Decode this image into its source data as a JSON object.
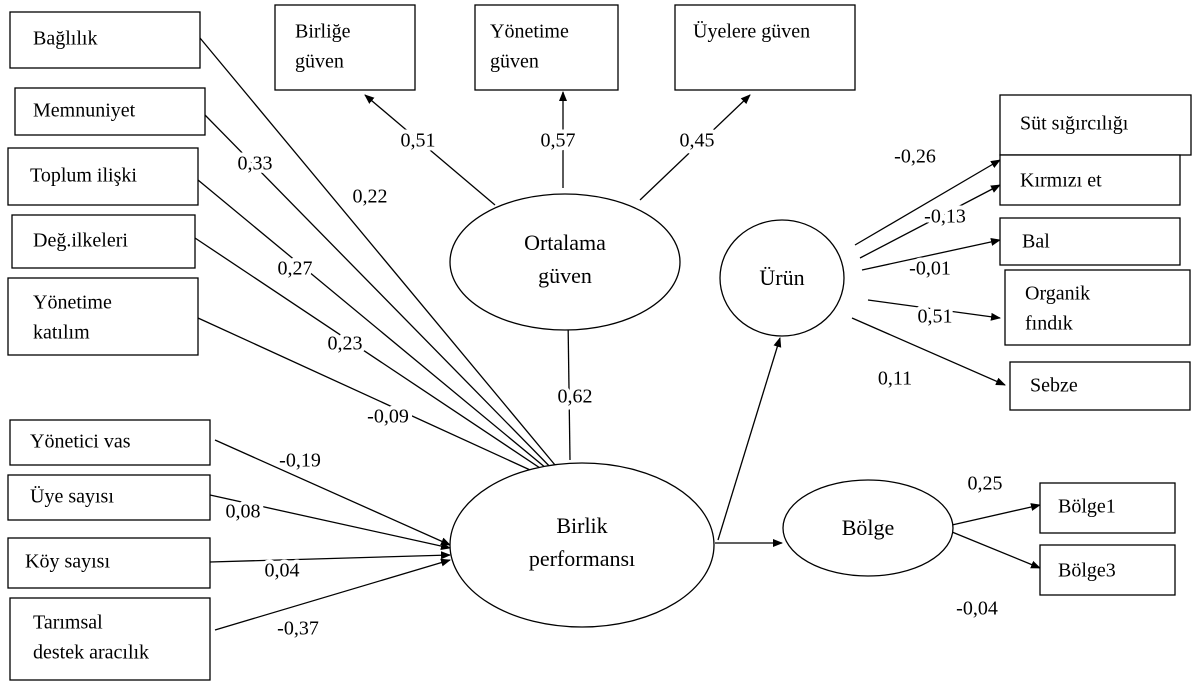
{
  "boxes": [
    {
      "lines": [
        "Bağlılık"
      ]
    },
    {
      "lines": [
        "Memnuniyet"
      ]
    },
    {
      "lines": [
        "Toplum ilişki"
      ]
    },
    {
      "lines": [
        "Değ.ilkeleri"
      ]
    },
    {
      "lines": [
        "Yönetime",
        "katılım"
      ]
    },
    {
      "lines": [
        "Yönetici vas"
      ]
    },
    {
      "lines": [
        "Üye sayısı"
      ]
    },
    {
      "lines": [
        "Köy sayısı"
      ]
    },
    {
      "lines": [
        "Tarımsal",
        "destek aracılık"
      ]
    },
    {
      "lines": [
        "Birliğe",
        "güven"
      ]
    },
    {
      "lines": [
        "Yönetime",
        "güven"
      ]
    },
    {
      "lines": [
        "Üyelere güven"
      ]
    },
    {
      "lines": [
        "Süt sığırcılığı"
      ]
    },
    {
      "lines": [
        "Kırmızı et"
      ]
    },
    {
      "lines": [
        "Bal"
      ]
    },
    {
      "lines": [
        "Organik",
        "fındık"
      ]
    },
    {
      "lines": [
        "Sebze"
      ]
    },
    {
      "lines": [
        "Bölge1"
      ]
    },
    {
      "lines": [
        "Bölge3"
      ]
    }
  ],
  "ellipses": [
    {
      "lines": [
        "Ortalama",
        "güven"
      ]
    },
    {
      "lines": [
        "Ürün"
      ]
    },
    {
      "lines": [
        "Birlik",
        "performansı"
      ]
    },
    {
      "lines": [
        "Bölge"
      ]
    }
  ],
  "edges": [
    {
      "label": "0,22"
    },
    {
      "label": "0,33"
    },
    {
      "label": "0,27"
    },
    {
      "label": "0,23"
    },
    {
      "label": "-0,09"
    },
    {
      "label": "-0,19"
    },
    {
      "label": "0,08"
    },
    {
      "label": "0,04"
    },
    {
      "label": "-0,37"
    },
    {
      "label": "0,51"
    },
    {
      "label": "0,57"
    },
    {
      "label": "0,45"
    },
    {
      "label": "0,62"
    },
    {
      "label": "-0,26"
    },
    {
      "label": "-0,13"
    },
    {
      "label": "-0,01"
    },
    {
      "label": "0,51"
    },
    {
      "label": "0,11"
    },
    {
      "label": "0,25"
    },
    {
      "label": "-0,04"
    }
  ]
}
